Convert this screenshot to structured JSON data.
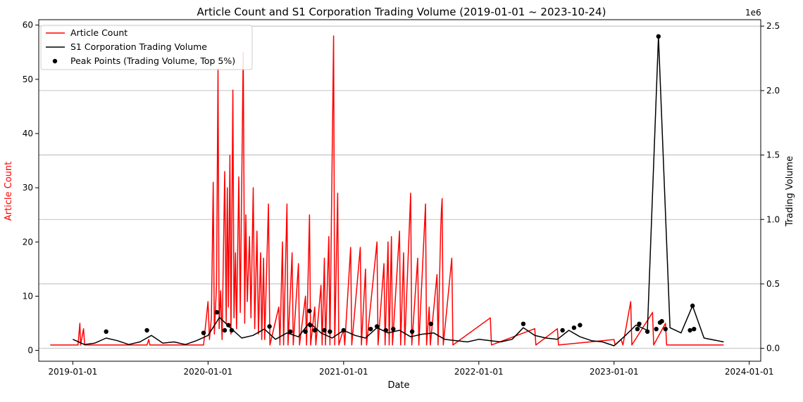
{
  "chart_data": {
    "type": "line",
    "title": "Article Count and S1 Corporation Trading Volume (2019-01-01 ~ 2023-10-24)",
    "xlabel": "Date",
    "ylabel_left": "Article Count",
    "ylabel_right": "Trading Volume",
    "right_axis_multiplier": "1e6",
    "x_ticks": [
      "2019-01-01",
      "2020-01-01",
      "2021-01-01",
      "2022-01-01",
      "2023-01-01",
      "2024-01-01"
    ],
    "xlim": [
      "2018-10-01",
      "2024-02-01"
    ],
    "ylim_left": [
      -2,
      61
    ],
    "ylim_right": [
      -0.1,
      2.55
    ],
    "left_ticks": [
      0,
      10,
      20,
      30,
      40,
      50,
      60
    ],
    "right_ticks": [
      "0.0",
      "0.5",
      "1.0",
      "1.5",
      "2.0",
      "2.5"
    ],
    "right_tick_values": [
      0,
      0.5,
      1.0,
      1.5,
      2.0,
      2.5
    ],
    "grid": "horizontal, right axis",
    "legend_position": "top-left",
    "colors": {
      "article": "#ff0000",
      "volume": "#000000",
      "peaks": "#000000",
      "left_label": "#ff0000"
    },
    "series": [
      {
        "name": "Article Count",
        "axis": "left",
        "color": "#ff0000",
        "points": [
          [
            "2018-11-01",
            1
          ],
          [
            "2019-01-15",
            1
          ],
          [
            "2019-01-20",
            5
          ],
          [
            "2019-01-22",
            1
          ],
          [
            "2019-01-30",
            4
          ],
          [
            "2019-02-02",
            1
          ],
          [
            "2019-07-20",
            1
          ],
          [
            "2019-07-25",
            2
          ],
          [
            "2019-07-28",
            1
          ],
          [
            "2019-12-20",
            1
          ],
          [
            "2020-01-01",
            9
          ],
          [
            "2020-01-05",
            2
          ],
          [
            "2020-01-10",
            6
          ],
          [
            "2020-01-15",
            31
          ],
          [
            "2020-01-18",
            3
          ],
          [
            "2020-01-24",
            12
          ],
          [
            "2020-01-28",
            52
          ],
          [
            "2020-01-31",
            4
          ],
          [
            "2020-02-04",
            11
          ],
          [
            "2020-02-08",
            2
          ],
          [
            "2020-02-15",
            33
          ],
          [
            "2020-02-19",
            5
          ],
          [
            "2020-02-22",
            30
          ],
          [
            "2020-02-25",
            8
          ],
          [
            "2020-02-29",
            36
          ],
          [
            "2020-03-03",
            3
          ],
          [
            "2020-03-08",
            48
          ],
          [
            "2020-03-11",
            6
          ],
          [
            "2020-03-15",
            18
          ],
          [
            "2020-03-18",
            4
          ],
          [
            "2020-03-24",
            32
          ],
          [
            "2020-03-28",
            7
          ],
          [
            "2020-04-05",
            55
          ],
          [
            "2020-04-09",
            5
          ],
          [
            "2020-04-12",
            25
          ],
          [
            "2020-04-16",
            9
          ],
          [
            "2020-04-22",
            21
          ],
          [
            "2020-04-26",
            6
          ],
          [
            "2020-05-02",
            30
          ],
          [
            "2020-05-06",
            4
          ],
          [
            "2020-05-12",
            22
          ],
          [
            "2020-05-16",
            3
          ],
          [
            "2020-05-22",
            18
          ],
          [
            "2020-05-25",
            2
          ],
          [
            "2020-05-30",
            17
          ],
          [
            "2020-06-02",
            2
          ],
          [
            "2020-06-12",
            27
          ],
          [
            "2020-06-16",
            1
          ],
          [
            "2020-07-10",
            8
          ],
          [
            "2020-07-13",
            1
          ],
          [
            "2020-07-20",
            20
          ],
          [
            "2020-07-23",
            1
          ],
          [
            "2020-08-01",
            27
          ],
          [
            "2020-08-04",
            1
          ],
          [
            "2020-08-15",
            18
          ],
          [
            "2020-08-18",
            1
          ],
          [
            "2020-09-01",
            16
          ],
          [
            "2020-09-04",
            1
          ],
          [
            "2020-09-20",
            10
          ],
          [
            "2020-09-23",
            1
          ],
          [
            "2020-10-01",
            25
          ],
          [
            "2020-10-04",
            1
          ],
          [
            "2020-10-15",
            8
          ],
          [
            "2020-10-18",
            1
          ],
          [
            "2020-11-01",
            12
          ],
          [
            "2020-11-04",
            1
          ],
          [
            "2020-11-10",
            17
          ],
          [
            "2020-11-13",
            1
          ],
          [
            "2020-11-22",
            21
          ],
          [
            "2020-11-25",
            1
          ],
          [
            "2020-12-05",
            58
          ],
          [
            "2020-12-08",
            1
          ],
          [
            "2020-12-16",
            29
          ],
          [
            "2020-12-19",
            1
          ],
          [
            "2021-01-01",
            4
          ],
          [
            "2021-01-04",
            1
          ],
          [
            "2021-01-20",
            19
          ],
          [
            "2021-01-23",
            1
          ],
          [
            "2021-02-15",
            19
          ],
          [
            "2021-02-18",
            1
          ],
          [
            "2021-03-01",
            15
          ],
          [
            "2021-03-04",
            1
          ],
          [
            "2021-04-01",
            20
          ],
          [
            "2021-04-04",
            1
          ],
          [
            "2021-04-20",
            16
          ],
          [
            "2021-04-23",
            1
          ],
          [
            "2021-05-01",
            20
          ],
          [
            "2021-05-04",
            1
          ],
          [
            "2021-05-10",
            21
          ],
          [
            "2021-05-13",
            1
          ],
          [
            "2021-06-01",
            22
          ],
          [
            "2021-06-04",
            1
          ],
          [
            "2021-06-12",
            18
          ],
          [
            "2021-06-15",
            1
          ],
          [
            "2021-07-01",
            29
          ],
          [
            "2021-07-04",
            1
          ],
          [
            "2021-07-20",
            17
          ],
          [
            "2021-07-23",
            1
          ],
          [
            "2021-08-10",
            27
          ],
          [
            "2021-08-13",
            1
          ],
          [
            "2021-08-20",
            8
          ],
          [
            "2021-08-23",
            1
          ],
          [
            "2021-09-10",
            14
          ],
          [
            "2021-09-13",
            1
          ],
          [
            "2021-09-20",
            22
          ],
          [
            "2021-09-22",
            26
          ],
          [
            "2021-09-24",
            28
          ],
          [
            "2021-09-27",
            1
          ],
          [
            "2021-10-20",
            17
          ],
          [
            "2021-10-23",
            1
          ],
          [
            "2022-02-01",
            6
          ],
          [
            "2022-02-04",
            1
          ],
          [
            "2022-06-01",
            4
          ],
          [
            "2022-06-04",
            1
          ],
          [
            "2022-08-01",
            4
          ],
          [
            "2022-08-04",
            1
          ],
          [
            "2023-01-01",
            2
          ],
          [
            "2023-01-04",
            1
          ],
          [
            "2023-01-20",
            2
          ],
          [
            "2023-01-25",
            1
          ],
          [
            "2023-02-15",
            9
          ],
          [
            "2023-02-18",
            1
          ],
          [
            "2023-04-15",
            7
          ],
          [
            "2023-04-18",
            1
          ],
          [
            "2023-05-20",
            5
          ],
          [
            "2023-05-23",
            1
          ],
          [
            "2023-10-24",
            1
          ]
        ]
      },
      {
        "name": "S1 Corporation Trading Volume",
        "axis": "right",
        "color": "#000000",
        "points": [
          [
            "2019-01-01",
            0.07
          ],
          [
            "2019-02-01",
            0.03
          ],
          [
            "2019-03-01",
            0.04
          ],
          [
            "2019-04-01",
            0.08
          ],
          [
            "2019-05-01",
            0.06
          ],
          [
            "2019-06-01",
            0.03
          ],
          [
            "2019-07-01",
            0.05
          ],
          [
            "2019-08-01",
            0.1
          ],
          [
            "2019-09-01",
            0.04
          ],
          [
            "2019-10-01",
            0.05
          ],
          [
            "2019-11-01",
            0.03
          ],
          [
            "2019-12-01",
            0.06
          ],
          [
            "2020-01-01",
            0.1
          ],
          [
            "2020-02-01",
            0.24
          ],
          [
            "2020-03-01",
            0.16
          ],
          [
            "2020-04-01",
            0.08
          ],
          [
            "2020-05-01",
            0.1
          ],
          [
            "2020-06-01",
            0.15
          ],
          [
            "2020-07-01",
            0.07
          ],
          [
            "2020-08-01",
            0.12
          ],
          [
            "2020-09-01",
            0.09
          ],
          [
            "2020-10-01",
            0.2
          ],
          [
            "2020-11-01",
            0.12
          ],
          [
            "2020-12-01",
            0.08
          ],
          [
            "2021-01-01",
            0.14
          ],
          [
            "2021-02-01",
            0.1
          ],
          [
            "2021-03-01",
            0.08
          ],
          [
            "2021-04-01",
            0.16
          ],
          [
            "2021-05-01",
            0.12
          ],
          [
            "2021-06-01",
            0.14
          ],
          [
            "2021-07-01",
            0.09
          ],
          [
            "2021-08-01",
            0.11
          ],
          [
            "2021-09-01",
            0.12
          ],
          [
            "2021-10-01",
            0.07
          ],
          [
            "2021-11-01",
            0.06
          ],
          [
            "2021-12-01",
            0.05
          ],
          [
            "2022-01-01",
            0.07
          ],
          [
            "2022-02-01",
            0.06
          ],
          [
            "2022-03-01",
            0.05
          ],
          [
            "2022-04-01",
            0.07
          ],
          [
            "2022-05-01",
            0.16
          ],
          [
            "2022-06-01",
            0.1
          ],
          [
            "2022-07-01",
            0.08
          ],
          [
            "2022-08-01",
            0.07
          ],
          [
            "2022-09-01",
            0.14
          ],
          [
            "2022-10-01",
            0.09
          ],
          [
            "2022-11-01",
            0.06
          ],
          [
            "2022-12-01",
            0.05
          ],
          [
            "2023-01-01",
            0.02
          ],
          [
            "2023-02-01",
            0.1
          ],
          [
            "2023-03-01",
            0.18
          ],
          [
            "2023-04-01",
            0.14
          ],
          [
            "2023-05-01",
            2.42
          ],
          [
            "2023-06-01",
            0.16
          ],
          [
            "2023-07-01",
            0.12
          ],
          [
            "2023-08-01",
            0.33
          ],
          [
            "2023-09-01",
            0.08
          ],
          [
            "2023-10-24",
            0.05
          ]
        ]
      },
      {
        "name": "Peak Points (Trading Volume, Top 5%)",
        "axis": "right",
        "color": "#000000",
        "kind": "scatter",
        "points": [
          [
            "2019-04-01",
            0.13
          ],
          [
            "2019-07-20",
            0.14
          ],
          [
            "2019-12-20",
            0.12
          ],
          [
            "2020-01-25",
            0.28
          ],
          [
            "2020-02-15",
            0.14
          ],
          [
            "2020-02-25",
            0.18
          ],
          [
            "2020-03-05",
            0.14
          ],
          [
            "2020-06-15",
            0.17
          ],
          [
            "2020-08-10",
            0.13
          ],
          [
            "2020-09-20",
            0.13
          ],
          [
            "2020-10-01",
            0.29
          ],
          [
            "2020-10-03",
            0.18
          ],
          [
            "2020-10-15",
            0.14
          ],
          [
            "2020-11-10",
            0.14
          ],
          [
            "2020-11-25",
            0.13
          ],
          [
            "2021-01-01",
            0.14
          ],
          [
            "2021-03-15",
            0.15
          ],
          [
            "2021-04-01",
            0.17
          ],
          [
            "2021-04-25",
            0.14
          ],
          [
            "2021-05-15",
            0.15
          ],
          [
            "2021-07-05",
            0.13
          ],
          [
            "2021-08-25",
            0.19
          ],
          [
            "2022-05-01",
            0.19
          ],
          [
            "2022-08-15",
            0.14
          ],
          [
            "2022-09-15",
            0.16
          ],
          [
            "2022-10-01",
            0.18
          ],
          [
            "2023-03-05",
            0.15
          ],
          [
            "2023-03-10",
            0.19
          ],
          [
            "2023-04-01",
            0.13
          ],
          [
            "2023-04-25",
            0.15
          ],
          [
            "2023-05-01",
            2.42
          ],
          [
            "2023-05-05",
            0.2
          ],
          [
            "2023-05-10",
            0.21
          ],
          [
            "2023-05-20",
            0.15
          ],
          [
            "2023-07-25",
            0.14
          ],
          [
            "2023-08-01",
            0.33
          ],
          [
            "2023-08-05",
            0.15
          ]
        ]
      }
    ]
  }
}
